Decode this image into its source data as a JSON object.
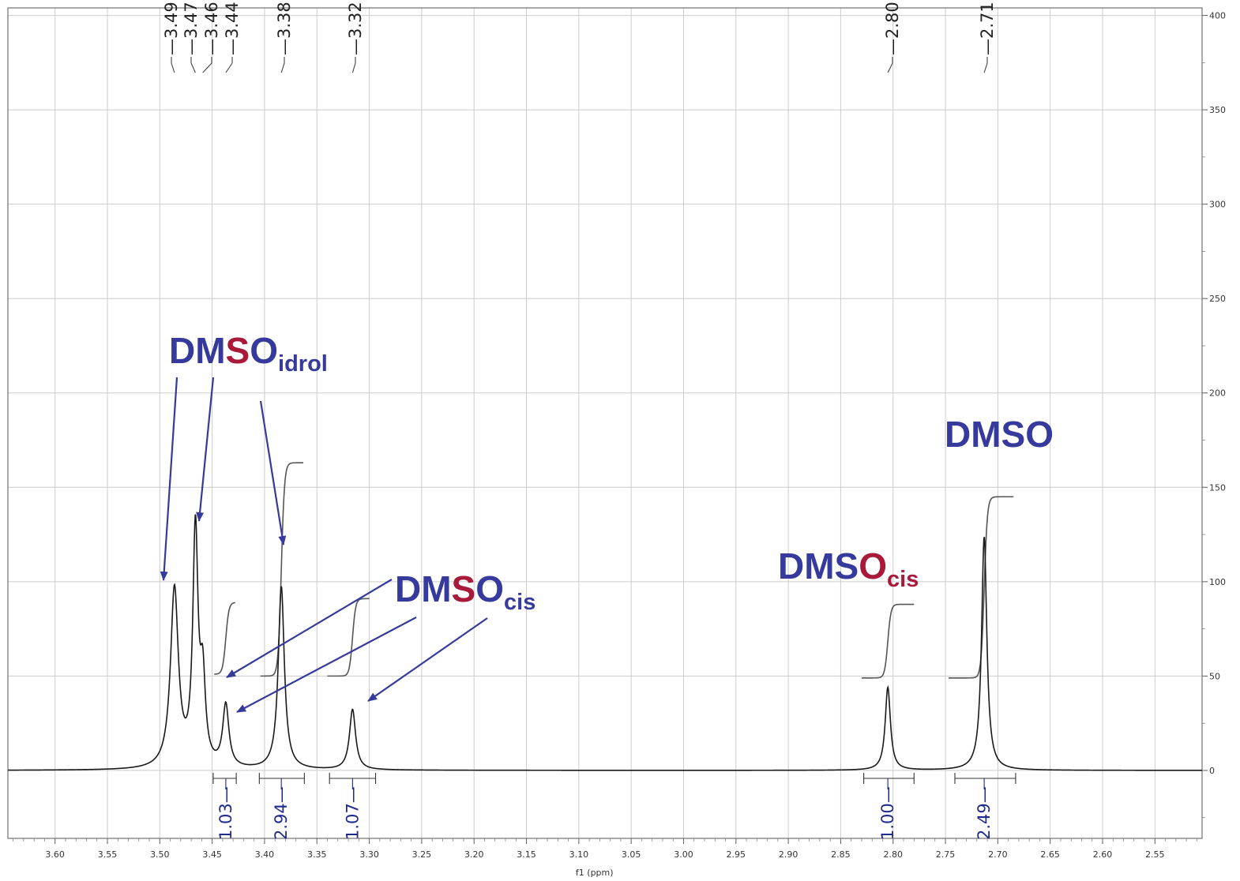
{
  "chart_data": {
    "type": "line",
    "xlabel": "f1 (ppm)",
    "xlim": [
      3.645,
      2.505
    ],
    "ylim": [
      -36,
      404
    ],
    "x_ticks": [
      "3.60",
      "3.55",
      "3.50",
      "3.45",
      "3.40",
      "3.35",
      "3.30",
      "3.25",
      "3.20",
      "3.15",
      "3.10",
      "3.05",
      "3.00",
      "2.95",
      "2.90",
      "2.85",
      "2.80",
      "2.75",
      "2.70",
      "2.65",
      "2.60",
      "2.55"
    ],
    "y_ticks": [
      "0",
      "50",
      "100",
      "150",
      "200",
      "250",
      "300",
      "350",
      "400"
    ],
    "peak_labels": [
      "3.49",
      "3.47",
      "3.46",
      "3.44",
      "3.38",
      "3.32",
      "2.80",
      "2.71"
    ],
    "peaks": [
      {
        "ppm": 3.486,
        "height": 95,
        "width": 0.0045
      },
      {
        "ppm": 3.466,
        "height": 124,
        "width": 0.003
      },
      {
        "ppm": 3.459,
        "height": 43,
        "width": 0.003
      },
      {
        "ppm": 3.437,
        "height": 33,
        "width": 0.0035
      },
      {
        "ppm": 3.384,
        "height": 97,
        "width": 0.0035
      },
      {
        "ppm": 3.316,
        "height": 32,
        "width": 0.0035
      },
      {
        "ppm": 2.805,
        "height": 44,
        "width": 0.003
      },
      {
        "ppm": 2.713,
        "height": 124,
        "width": 0.003
      }
    ],
    "integrals": [
      {
        "label": "1.03",
        "from": 3.449,
        "to": 3.427,
        "center": 3.437
      },
      {
        "label": "2.94",
        "from": 3.405,
        "to": 3.362,
        "center": 3.384
      },
      {
        "label": "1.07",
        "from": 3.338,
        "to": 3.294,
        "center": 3.316
      },
      {
        "label": "1.00",
        "from": 2.828,
        "to": 2.78,
        "center": 2.805
      },
      {
        "label": "2.49",
        "from": 2.741,
        "to": 2.683,
        "center": 2.713
      }
    ],
    "integral_curves": [
      {
        "from": 3.448,
        "to": 3.428,
        "center": 3.437,
        "base": 51,
        "rise": 38
      },
      {
        "from": 3.404,
        "to": 3.363,
        "center": 3.384,
        "base": 50,
        "rise": 113
      },
      {
        "from": 3.34,
        "to": 3.3,
        "center": 3.316,
        "base": 50,
        "rise": 41
      },
      {
        "from": 2.83,
        "to": 2.78,
        "center": 2.805,
        "base": 49,
        "rise": 39
      },
      {
        "from": 2.747,
        "to": 2.685,
        "center": 2.713,
        "base": 49,
        "rise": 96
      }
    ],
    "annotations": [
      {
        "main": "DMSO",
        "red_letter": "S",
        "subscript": "idrol",
        "sub_color": "#353a9c"
      },
      {
        "main": "DMSO",
        "red_letter": "S",
        "subscript": "cis",
        "sub_color": "#353a9c"
      },
      {
        "main": "DMSO",
        "red_letter": "O",
        "subscript": "cis",
        "sub_color": "#a8193a"
      },
      {
        "main": "DMSO",
        "red_letter": "",
        "subscript": "",
        "sub_color": "#353a9c"
      }
    ],
    "colors": {
      "spectrum": "#1a1a1a",
      "integral": "#555555",
      "grid": "#cccccc",
      "blue": "#353a9c",
      "red": "#a8193a",
      "integral_text": "#1f2a8f"
    }
  }
}
